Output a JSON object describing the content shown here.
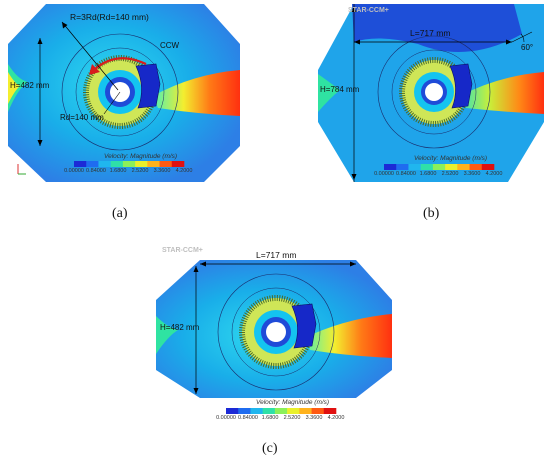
{
  "software_logo": "STAR-CCM+",
  "colorbar": {
    "title": "Velocity: Magnitude (m/s)",
    "ticks": [
      "0.00000",
      "0.84000",
      "1.6800",
      "2.5200",
      "3.3600",
      "4.2000"
    ],
    "colors": [
      "#1c2ad6",
      "#1f6cf0",
      "#20b6ee",
      "#2fe0a8",
      "#8bf05a",
      "#e9f02c",
      "#ffb21c",
      "#ff5a12",
      "#e01010"
    ]
  },
  "panels": [
    {
      "caption": "(a)",
      "labels": {
        "radius_outer": "R=3Rd(Rd=140 mm)",
        "rotation": "CCW",
        "height": "H=482 mm",
        "radius_rotor": "Rd=140 mm"
      }
    },
    {
      "caption": "(b)",
      "labels": {
        "length": "L=717 mm",
        "angle": "60°",
        "height": "H=784 mm"
      }
    },
    {
      "caption": "(c)",
      "labels": {
        "length": "L=717 mm",
        "height": "H=482 mm"
      }
    }
  ]
}
